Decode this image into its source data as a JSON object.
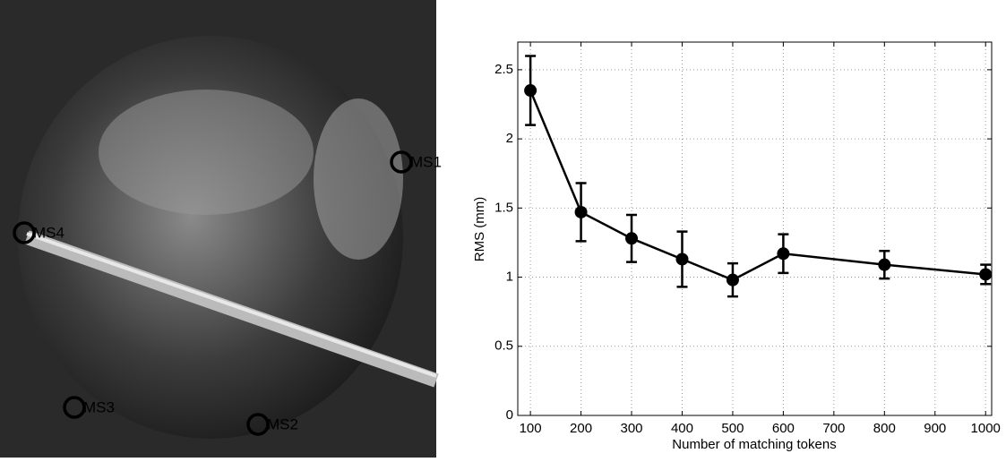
{
  "photo": {
    "markers": [
      "MS1",
      "MS2",
      "MS3",
      "MS4"
    ]
  },
  "chart_data": {
    "type": "line",
    "xlabel": "Number of matching tokens",
    "ylabel": "RMS (mm)",
    "x": [
      100,
      200,
      300,
      400,
      500,
      600,
      800,
      1000
    ],
    "values": [
      2.35,
      1.47,
      1.28,
      1.13,
      0.98,
      1.17,
      1.09,
      1.02
    ],
    "errors": [
      0.25,
      0.21,
      0.17,
      0.2,
      0.12,
      0.14,
      0.1,
      0.07
    ],
    "color": "#000000",
    "xlim": [
      75,
      1012
    ],
    "ylim": [
      0,
      2.7
    ],
    "xticks": [
      100,
      200,
      300,
      400,
      500,
      600,
      700,
      800,
      900,
      1000
    ],
    "yticks": [
      0,
      0.5,
      1,
      1.5,
      2,
      2.5
    ],
    "grid": true
  }
}
